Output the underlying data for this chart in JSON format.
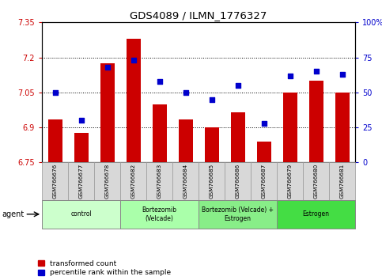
{
  "title": "GDS4089 / ILMN_1776327",
  "samples": [
    "GSM766676",
    "GSM766677",
    "GSM766678",
    "GSM766682",
    "GSM766683",
    "GSM766684",
    "GSM766685",
    "GSM766686",
    "GSM766687",
    "GSM766679",
    "GSM766680",
    "GSM766681"
  ],
  "bar_values": [
    6.935,
    6.875,
    7.175,
    7.28,
    7.0,
    6.935,
    6.9,
    6.965,
    6.84,
    7.05,
    7.1,
    7.05
  ],
  "dot_values": [
    50,
    30,
    68,
    73,
    58,
    50,
    45,
    55,
    28,
    62,
    65,
    63
  ],
  "ylim_left": [
    6.75,
    7.35
  ],
  "ylim_right": [
    0,
    100
  ],
  "yticks_left": [
    6.75,
    6.9,
    7.05,
    7.2,
    7.35
  ],
  "ytick_labels_left": [
    "6.75",
    "6.9",
    "7.05",
    "7.2",
    "7.35"
  ],
  "yticks_right": [
    0,
    25,
    50,
    75,
    100
  ],
  "ytick_labels_right": [
    "0",
    "25",
    "50",
    "75",
    "100%"
  ],
  "bar_color": "#cc0000",
  "dot_color": "#0000cc",
  "groups": [
    {
      "label": "control",
      "start": 0,
      "end": 3,
      "color": "#ccffcc"
    },
    {
      "label": "Bortezomib\n(Velcade)",
      "start": 3,
      "end": 6,
      "color": "#aaffaa"
    },
    {
      "label": "Bortezomib (Velcade) +\nEstrogen",
      "start": 6,
      "end": 9,
      "color": "#88ee88"
    },
    {
      "label": "Estrogen",
      "start": 9,
      "end": 12,
      "color": "#44dd44"
    }
  ],
  "agent_label": "agent",
  "legend_bar_label": "transformed count",
  "legend_dot_label": "percentile rank within the sample",
  "bar_width": 0.55
}
